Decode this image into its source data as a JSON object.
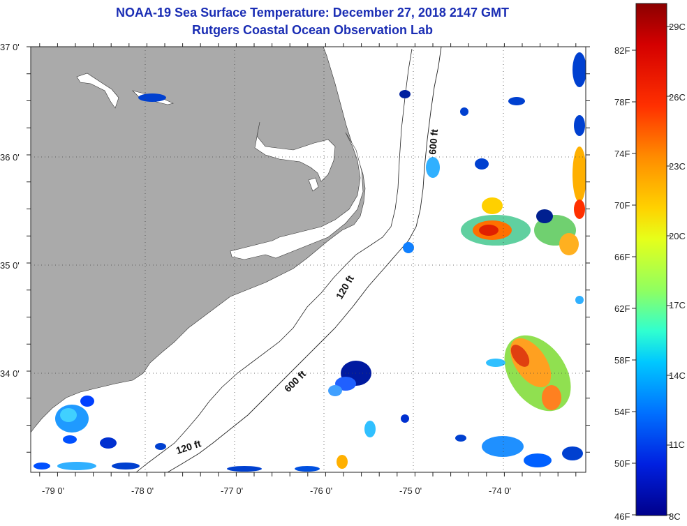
{
  "title": "NOAA-19 Sea Surface Temperature:  December 27, 2018 2147 GMT",
  "subtitle": "Rutgers Coastal Ocean Observation Lab",
  "lat_labels": [
    "37 0'",
    "36 0'",
    "35 0'",
    "34 0'"
  ],
  "lon_labels": [
    "-79 0'",
    "-78 0'",
    "-77 0'",
    "-76 0'",
    "-75 0'",
    "-74 0'"
  ],
  "contours": [
    "120 ft",
    "600 ft"
  ],
  "colorbar": {
    "f_labels": [
      "82F",
      "78F",
      "74F",
      "70F",
      "66F",
      "62F",
      "58F",
      "54F",
      "50F",
      "46F"
    ],
    "c_labels": [
      "29C",
      "26C",
      "23C",
      "20C",
      "17C",
      "14C",
      "11C",
      "8C"
    ],
    "colors": [
      "#8b0000",
      "#d40000",
      "#ff3000",
      "#ff8c00",
      "#ffd200",
      "#e6ff1a",
      "#90ff60",
      "#30ffd0",
      "#00c8ff",
      "#0070ff",
      "#0020e0",
      "#00008b"
    ]
  },
  "colors": {
    "land": "#aaaaaa",
    "ocean": "#ffffff",
    "title": "#1a2db4"
  }
}
